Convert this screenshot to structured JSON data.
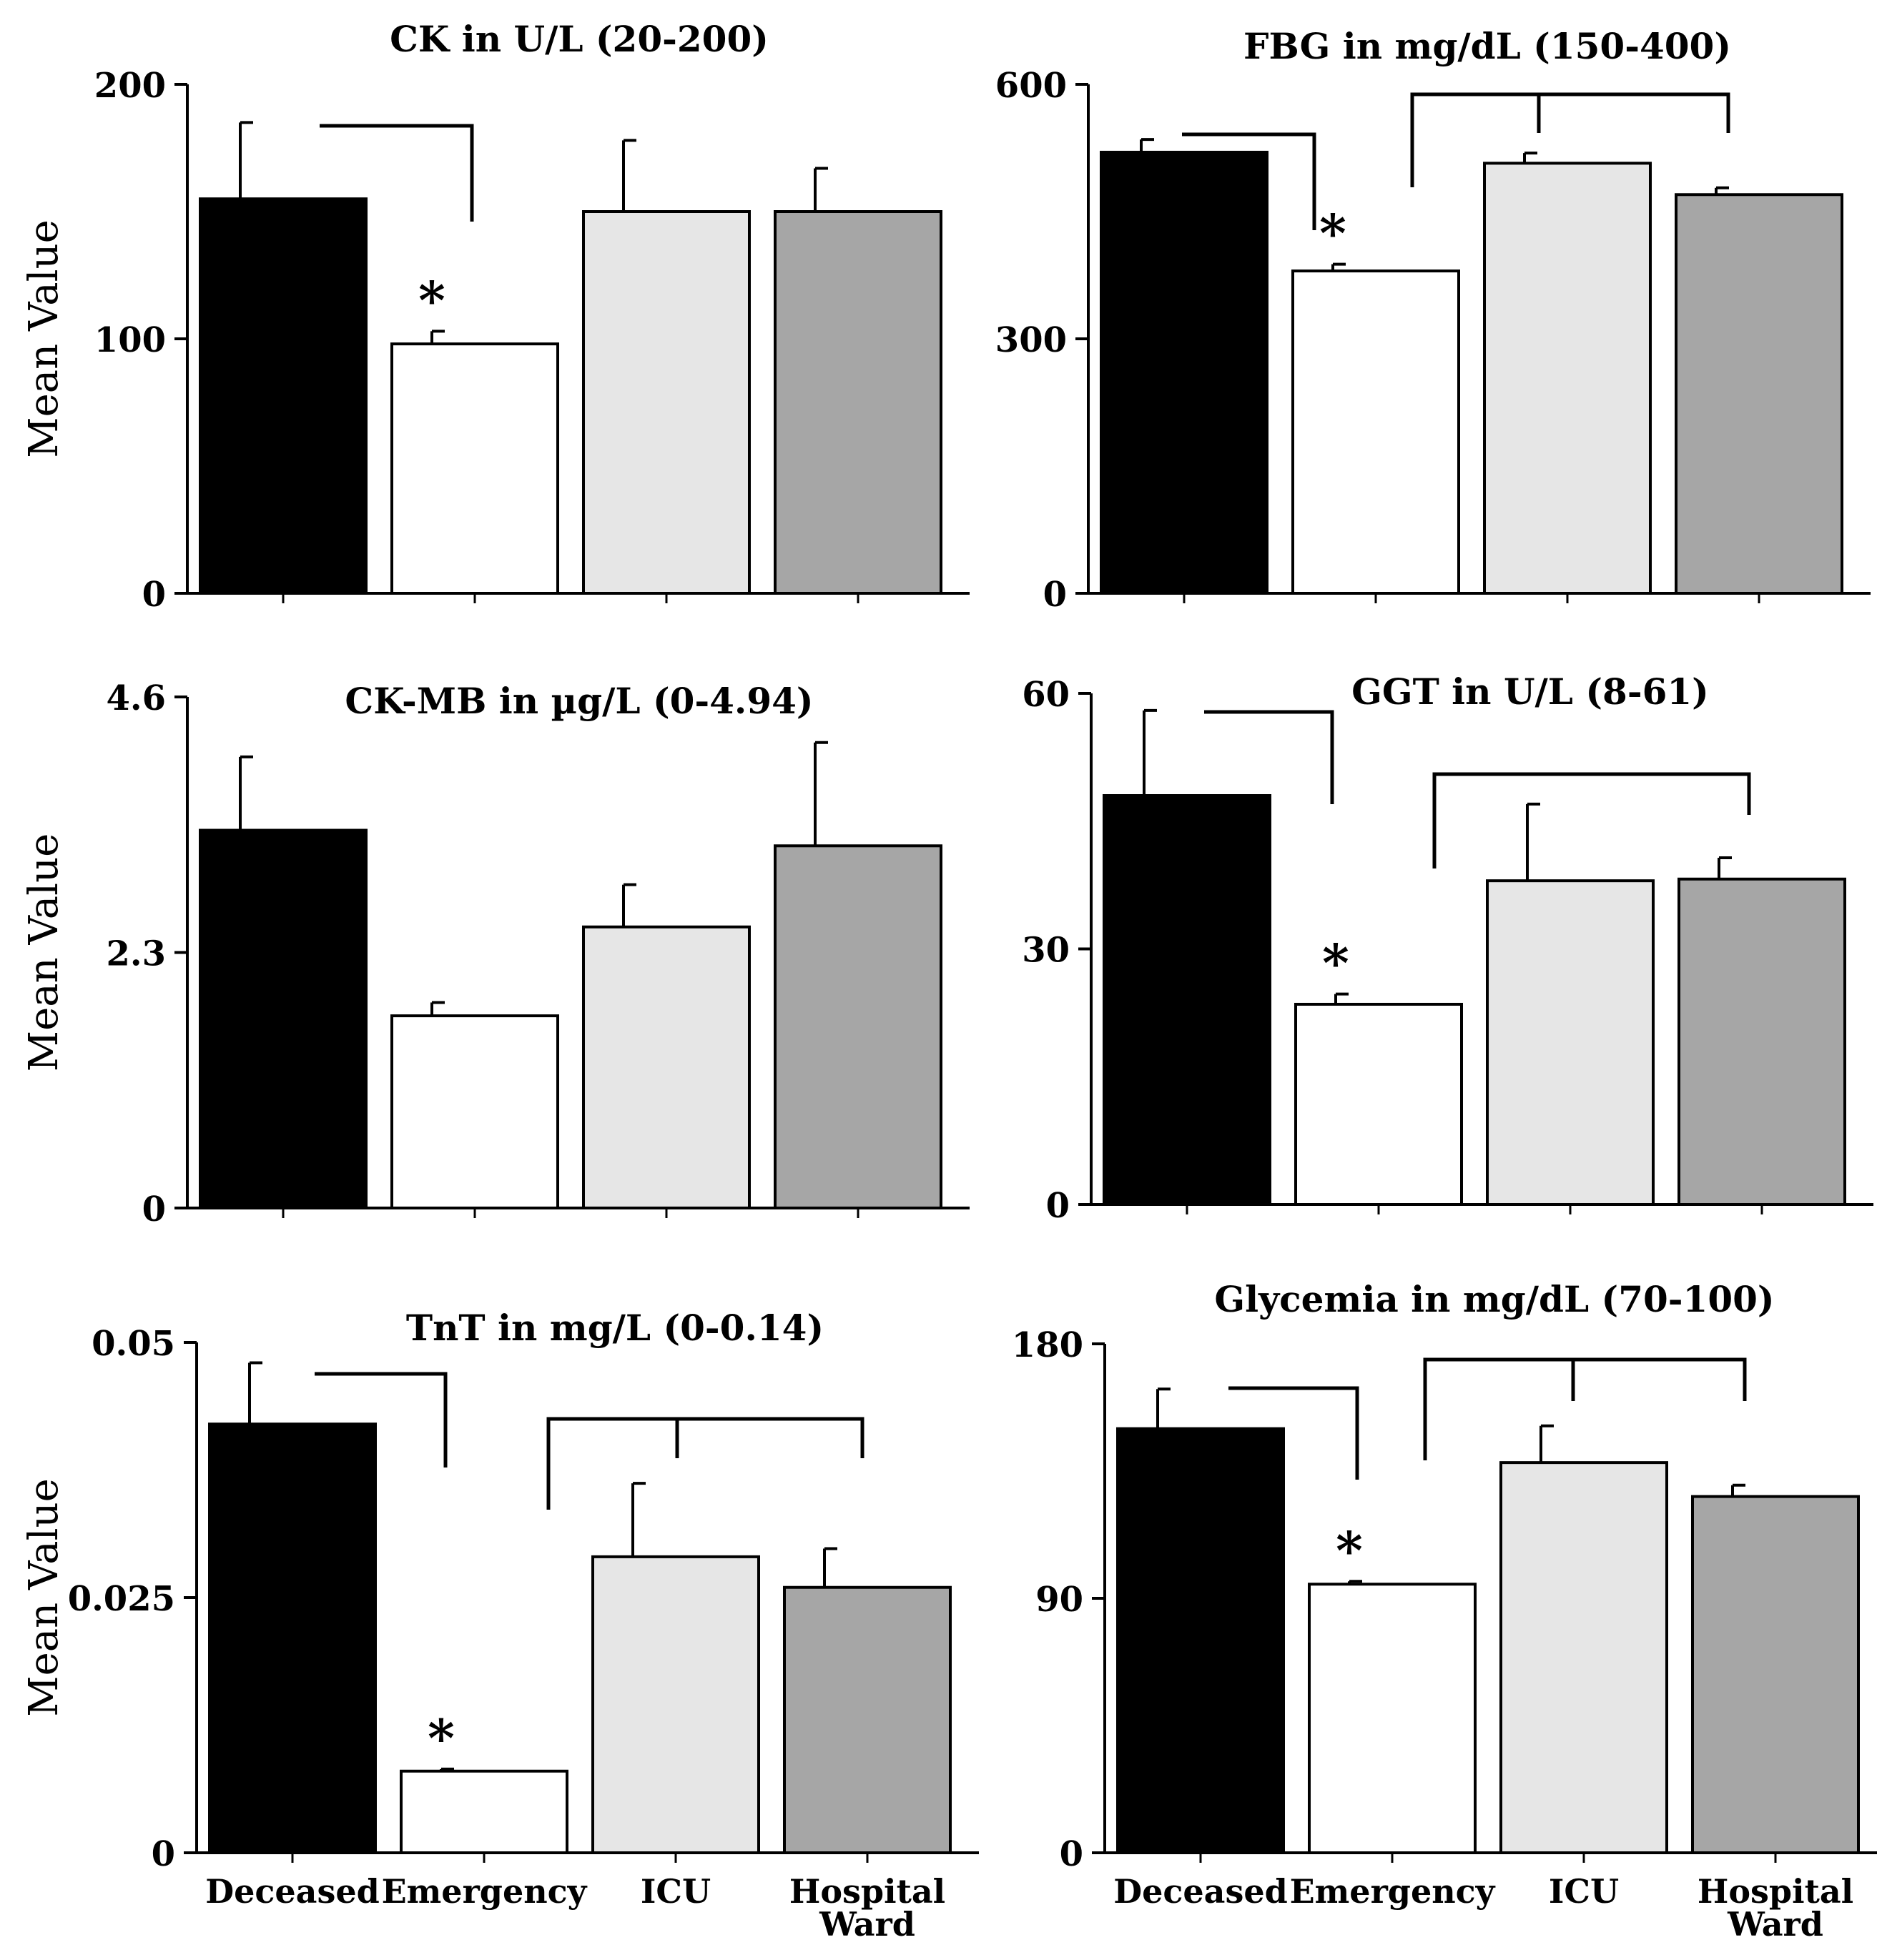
{
  "chart_data": [
    {
      "type": "bar",
      "title": "CK in U/L (20-200)",
      "ylabel": "Mean Value",
      "ylim": [
        0,
        200
      ],
      "yticks": [
        "0",
        "100",
        "200"
      ],
      "categories": [
        "Deceased",
        "Emergency",
        "ICU",
        "Hospital Ward"
      ],
      "values": [
        155,
        98,
        150,
        150
      ],
      "errors": [
        30,
        5,
        28,
        17
      ],
      "significance_marker": "*",
      "marked_category": "Emergency",
      "colors": [
        "#000000",
        "#ffffff",
        "#e6e6e6",
        "#a6a6a6"
      ]
    },
    {
      "type": "bar",
      "title": "FBG in mg/dL (150-400)",
      "ylabel": "",
      "ylim": [
        0,
        600
      ],
      "yticks": [
        "0",
        "300",
        "600"
      ],
      "categories": [
        "Deceased",
        "Emergency",
        "ICU",
        "Hospital Ward"
      ],
      "values": [
        520,
        380,
        507,
        470
      ],
      "errors": [
        15,
        8,
        12,
        8
      ],
      "significance_marker": "*",
      "marked_category": "Emergency",
      "colors": [
        "#000000",
        "#ffffff",
        "#e6e6e6",
        "#a6a6a6"
      ]
    },
    {
      "type": "bar",
      "title": "CK-MB in µg/L (0-4.94)",
      "ylabel": "Mean Value",
      "ylim": [
        0,
        4.6
      ],
      "yticks": [
        "0",
        "2.3",
        "4.6"
      ],
      "categories": [
        "Deceased",
        "Emergency",
        "ICU",
        "Hospital Ward"
      ],
      "values": [
        3.4,
        1.73,
        2.53,
        3.26
      ],
      "errors": [
        0.66,
        0.12,
        0.38,
        0.93
      ],
      "significance_marker": "",
      "marked_category": "",
      "colors": [
        "#000000",
        "#ffffff",
        "#e6e6e6",
        "#a6a6a6"
      ]
    },
    {
      "type": "bar",
      "title": "GGT in U/L (8-61)",
      "ylabel": "",
      "ylim": [
        0,
        60
      ],
      "yticks": [
        "0",
        "30",
        "60"
      ],
      "categories": [
        "Deceased",
        "Emergency",
        "ICU",
        "Hospital Ward"
      ],
      "values": [
        48,
        23.5,
        38,
        38.2
      ],
      "errors": [
        10,
        1.2,
        9,
        2.5
      ],
      "significance_marker": "*",
      "marked_category": "Emergency",
      "colors": [
        "#000000",
        "#ffffff",
        "#e6e6e6",
        "#a6a6a6"
      ]
    },
    {
      "type": "bar",
      "title": "TnT in mg/L (0-0.14)",
      "ylabel": "Mean Value",
      "ylim": [
        0,
        0.05
      ],
      "yticks": [
        "0",
        "0.025",
        "0.05"
      ],
      "categories": [
        "Deceased",
        "Emergency",
        "ICU",
        "Hospital Ward"
      ],
      "values": [
        0.042,
        0.008,
        0.029,
        0.026
      ],
      "errors": [
        0.006,
        0.0002,
        0.0072,
        0.0038
      ],
      "significance_marker": "*",
      "marked_category": "Emergency",
      "colors": [
        "#000000",
        "#ffffff",
        "#e6e6e6",
        "#a6a6a6"
      ]
    },
    {
      "type": "bar",
      "title": "Glycemia in mg/dL (70-100)",
      "ylabel": "",
      "ylim": [
        0,
        180
      ],
      "yticks": [
        "0",
        "90",
        "180"
      ],
      "categories": [
        "Deceased",
        "Emergency",
        "ICU",
        "Hospital Ward"
      ],
      "values": [
        150,
        95,
        138,
        126
      ],
      "errors": [
        14,
        1,
        13,
        4
      ],
      "significance_marker": "*",
      "marked_category": "Emergency",
      "colors": [
        "#000000",
        "#ffffff",
        "#e6e6e6",
        "#a6a6a6"
      ]
    }
  ]
}
